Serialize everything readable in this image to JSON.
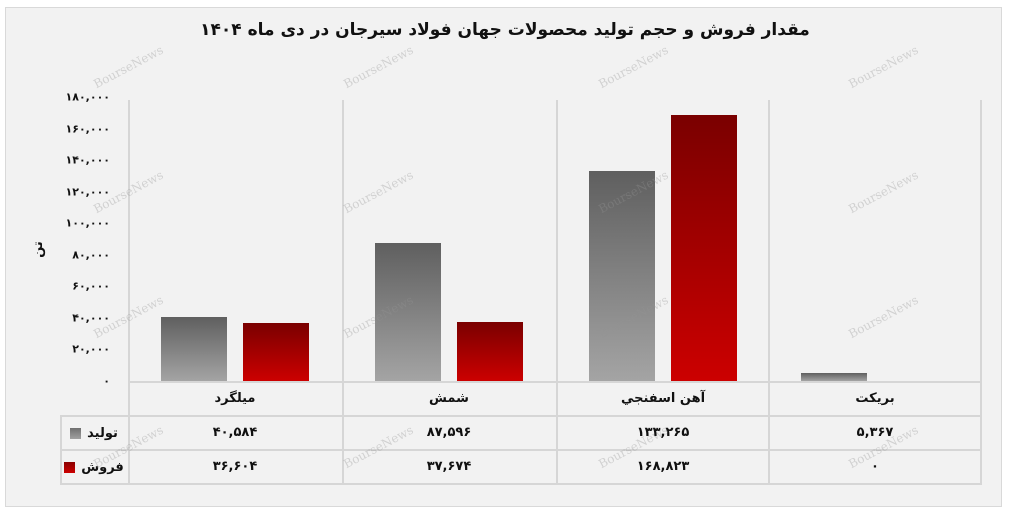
{
  "chart_data": {
    "type": "bar",
    "title": "مقدار فروش و حجم تولید محصولات جهان فولاد سیرجان در دی ماه ۱۴۰۴",
    "xlabel": "",
    "ylabel": "تن",
    "ylim": [
      0,
      180000
    ],
    "yticks": [
      "۰",
      "۲۰,۰۰۰",
      "۴۰,۰۰۰",
      "۶۰,۰۰۰",
      "۸۰,۰۰۰",
      "۱۰۰,۰۰۰",
      "۱۲۰,۰۰۰",
      "۱۴۰,۰۰۰",
      "۱۶۰,۰۰۰",
      "۱۸۰,۰۰۰"
    ],
    "categories": [
      "میلگرد",
      "شمش",
      "آهن اسفنجي",
      "بریکت"
    ],
    "series": [
      {
        "name": "تولید",
        "color": "#8c8c8c",
        "values": [
          40584,
          87596,
          133265,
          5367
        ],
        "labels": [
          "۴۰,۵۸۴",
          "۸۷,۵۹۶",
          "۱۳۳,۲۶۵",
          "۵,۳۶۷"
        ]
      },
      {
        "name": "فروش",
        "color": "#b30000",
        "values": [
          36604,
          37674,
          168823,
          0
        ],
        "labels": [
          "۳۶,۶۰۴",
          "۳۷,۶۷۴",
          "۱۶۸,۸۲۳",
          "۰"
        ]
      }
    ],
    "grid": false,
    "legend_position": "data-table-left",
    "watermark": "BourseNews"
  }
}
